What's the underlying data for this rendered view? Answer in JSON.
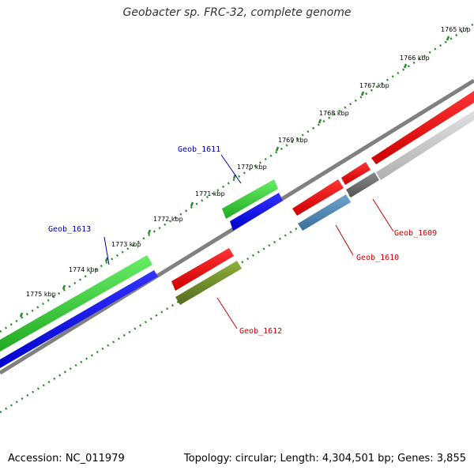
{
  "title": "Geobacter sp. FRC-32, complete genome",
  "footer": {
    "accession": "Accession: NC_011979",
    "summary": "Topology: circular; Length: 4,304,501 bp; Genes: 3,855"
  },
  "kbp_labels": [
    "1765 kbp",
    "1766 kbp",
    "1767 kbp",
    "1768 kbp",
    "1769 kbp",
    "1770 kbp",
    "1771 kbp",
    "1772 kbp",
    "1773 kbp",
    "1774 kbp",
    "1775 kbp"
  ],
  "genes": [
    {
      "name": "Geob_1609",
      "color": "#cc0000"
    },
    {
      "name": "Geob_1610",
      "color": "#cc0000"
    },
    {
      "name": "Geob_1611",
      "color": "#0000aa"
    },
    {
      "name": "Geob_1612",
      "color": "#cc0000"
    },
    {
      "name": "Geob_1613",
      "color": "#0000aa"
    }
  ],
  "colors": {
    "green": "#33cc33",
    "blue": "#0000ee",
    "red": "#ee0000",
    "olive": "#6b8e23",
    "steel": "#4682b4",
    "gray": "#666666",
    "lightgray": "#c8c8c8",
    "backbone": "#808080"
  }
}
